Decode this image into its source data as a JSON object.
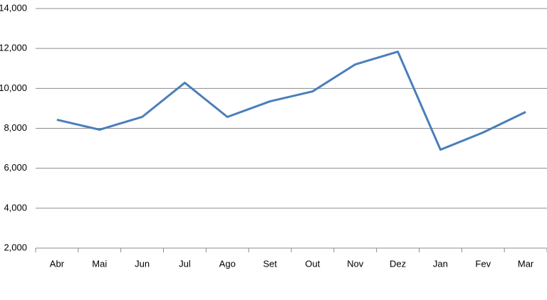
{
  "chart_data": {
    "type": "line",
    "categories": [
      "Abr",
      "Mai",
      "Jun",
      "Jul",
      "Ago",
      "Set",
      "Out",
      "Nov",
      "Dez",
      "Jan",
      "Fev",
      "Mar"
    ],
    "series": [
      {
        "color": "#4a7ebb",
        "values": [
          8430,
          7930,
          8570,
          10280,
          8570,
          9350,
          9850,
          11200,
          11840,
          6930,
          7790,
          8820
        ]
      }
    ],
    "ylim": [
      2000,
      14000
    ],
    "yticks": [
      {
        "value": 2000,
        "label": "2,000"
      },
      {
        "value": 4000,
        "label": "4,000"
      },
      {
        "value": 6000,
        "label": "6,000"
      },
      {
        "value": 8000,
        "label": "8,000"
      },
      {
        "value": 10000,
        "label": "10,000"
      },
      {
        "value": 12000,
        "label": "12,000"
      },
      {
        "value": 14000,
        "label": "14,000"
      }
    ],
    "grid": true
  }
}
